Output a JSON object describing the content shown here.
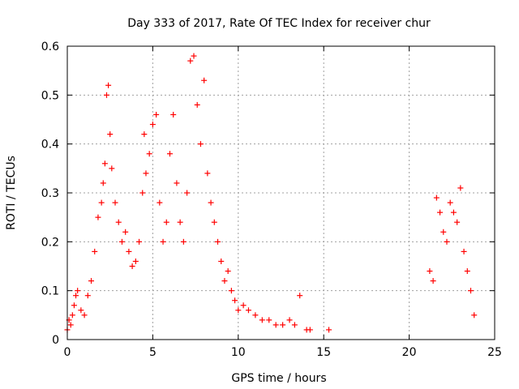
{
  "chart_data": {
    "type": "scatter",
    "title": "Day 333 of 2017, Rate Of TEC Index for receiver chur",
    "xlabel": "GPS time / hours",
    "ylabel": "ROTI / TECUs",
    "xlim": [
      0,
      25
    ],
    "ylim": [
      0,
      0.6
    ],
    "xticks": [
      "0",
      "5",
      "10",
      "15",
      "20",
      "25"
    ],
    "yticks": [
      "0",
      "0.1",
      "0.2",
      "0.3",
      "0.4",
      "0.5",
      "0.6"
    ],
    "grid": true,
    "legend": "none",
    "marker": "plus",
    "color": "#ff0000",
    "series": [
      {
        "x": [
          0.0,
          0.1,
          0.2,
          0.3,
          0.4,
          0.5,
          0.6,
          0.8,
          1.0,
          1.2,
          1.4,
          1.6,
          1.8,
          2.0,
          2.1,
          2.2,
          2.3,
          2.4,
          2.5,
          2.6,
          2.8,
          3.0,
          3.2,
          3.4,
          3.6,
          3.8,
          4.0,
          4.2,
          4.4,
          4.5,
          4.6,
          4.8,
          5.0,
          5.2,
          5.4,
          5.6,
          5.8,
          6.0,
          6.2,
          6.4,
          6.6,
          6.8,
          7.0,
          7.2,
          7.4,
          7.6,
          7.8,
          8.0,
          8.2,
          8.4,
          8.6,
          8.8,
          9.0,
          9.2,
          9.4,
          9.6,
          9.8,
          10.0,
          10.3,
          10.6,
          11.0,
          11.4,
          11.8,
          12.2,
          12.6,
          13.0,
          13.3,
          13.6,
          14.0,
          14.2,
          15.3,
          21.2,
          21.4,
          21.6,
          21.8,
          22.0,
          22.2,
          22.4,
          22.6,
          22.8,
          23.0,
          23.2,
          23.4,
          23.6,
          23.8
        ],
        "y": [
          0.02,
          0.04,
          0.03,
          0.05,
          0.07,
          0.09,
          0.1,
          0.06,
          0.05,
          0.09,
          0.12,
          0.18,
          0.25,
          0.28,
          0.32,
          0.36,
          0.5,
          0.52,
          0.42,
          0.35,
          0.28,
          0.24,
          0.2,
          0.22,
          0.18,
          0.15,
          0.16,
          0.2,
          0.3,
          0.42,
          0.34,
          0.38,
          0.44,
          0.46,
          0.28,
          0.2,
          0.24,
          0.38,
          0.46,
          0.32,
          0.24,
          0.2,
          0.3,
          0.57,
          0.58,
          0.48,
          0.4,
          0.53,
          0.34,
          0.28,
          0.24,
          0.2,
          0.16,
          0.12,
          0.14,
          0.1,
          0.08,
          0.06,
          0.07,
          0.06,
          0.05,
          0.04,
          0.04,
          0.03,
          0.03,
          0.04,
          0.03,
          0.09,
          0.02,
          0.02,
          0.02,
          0.14,
          0.12,
          0.29,
          0.26,
          0.22,
          0.2,
          0.28,
          0.26,
          0.24,
          0.31,
          0.18,
          0.14,
          0.1,
          0.05
        ]
      }
    ]
  }
}
